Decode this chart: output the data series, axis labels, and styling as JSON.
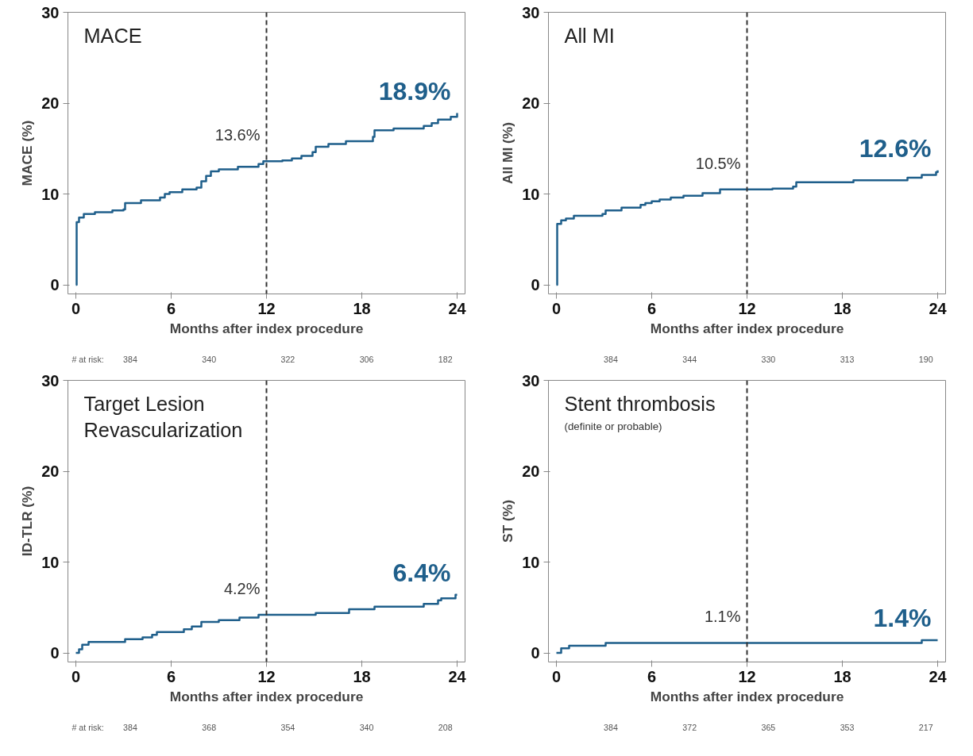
{
  "chart_data": [
    {
      "type": "step",
      "title": "MACE",
      "xlabel": "Months after index procedure",
      "ylabel": "MACE (%)",
      "xlim": [
        -0.5,
        24.5
      ],
      "ylim": [
        -1,
        30
      ],
      "xticks": [
        0,
        6,
        12,
        18,
        24
      ],
      "yticks": [
        0,
        10,
        20,
        30
      ],
      "grid": false,
      "line_style": "solid",
      "series": [
        {
          "color": "#1f5f8b",
          "x": [
            0,
            0.05,
            0.2,
            0.5,
            1.2,
            2.3,
            3.0,
            3.1,
            4.1,
            5.3,
            5.6,
            5.9,
            6.7,
            7.6,
            7.9,
            8.2,
            8.5,
            9.0,
            10.2,
            11.5,
            11.8,
            12,
            13.0,
            13.6,
            14.2,
            14.9,
            15.1,
            15.9,
            17.0,
            18.7,
            18.8,
            20.0,
            21.9,
            22.4,
            22.8,
            23.6,
            24.0
          ],
          "values": [
            0,
            6.9,
            7.4,
            7.8,
            8.0,
            8.2,
            8.3,
            9.0,
            9.3,
            9.6,
            10.0,
            10.2,
            10.5,
            10.7,
            11.4,
            12.0,
            12.5,
            12.7,
            13.0,
            13.3,
            13.6,
            13.6,
            13.7,
            13.9,
            14.2,
            14.6,
            15.2,
            15.5,
            15.8,
            16.3,
            17.0,
            17.2,
            17.5,
            17.8,
            18.2,
            18.5,
            18.9
          ],
          "value_labels": [
            null,
            null,
            null,
            null,
            null,
            null,
            null,
            null,
            null,
            null,
            null,
            null,
            null,
            null,
            null,
            null,
            null,
            null,
            null,
            null,
            null,
            "13.6%",
            null,
            null,
            null,
            null,
            null,
            null,
            null,
            null,
            null,
            null,
            null,
            null,
            null,
            null,
            "18.9%"
          ]
        }
      ],
      "ref_lines": [
        {
          "axis": "x",
          "value": 12,
          "color": "#333333",
          "line_style": "dashed"
        }
      ],
      "annotations": [
        "# at risk:",
        "384",
        "340",
        "322",
        "306",
        "182"
      ]
    },
    {
      "type": "step",
      "title": "All MI",
      "xlabel": "Months after index procedure",
      "ylabel": "All MI (%)",
      "xlim": [
        -0.5,
        24.5
      ],
      "ylim": [
        -1,
        30
      ],
      "xticks": [
        0,
        6,
        12,
        18,
        24
      ],
      "yticks": [
        0,
        10,
        20,
        30
      ],
      "grid": false,
      "line_style": "solid",
      "series": [
        {
          "color": "#1f5f8b",
          "x": [
            0,
            0.05,
            0.3,
            0.6,
            1.1,
            2.9,
            3.1,
            4.1,
            5.3,
            5.6,
            6.0,
            6.5,
            7.2,
            8.0,
            9.2,
            10.3,
            12,
            13.6,
            14.9,
            15.1,
            18.7,
            22.1,
            23.0,
            23.9,
            24.0
          ],
          "values": [
            0,
            6.7,
            7.1,
            7.3,
            7.6,
            7.8,
            8.2,
            8.5,
            8.8,
            9.0,
            9.2,
            9.4,
            9.6,
            9.8,
            10.1,
            10.5,
            10.5,
            10.6,
            10.8,
            11.3,
            11.5,
            11.8,
            12.1,
            12.4,
            12.6
          ],
          "value_labels": [
            null,
            null,
            null,
            null,
            null,
            null,
            null,
            null,
            null,
            null,
            null,
            null,
            null,
            null,
            null,
            null,
            "10.5%",
            null,
            null,
            null,
            null,
            null,
            null,
            null,
            "12.6%"
          ]
        }
      ],
      "ref_lines": [
        {
          "axis": "x",
          "value": 12,
          "color": "#333333",
          "line_style": "dashed"
        }
      ],
      "annotations": [
        "384",
        "344",
        "330",
        "313",
        "190"
      ]
    },
    {
      "type": "step",
      "title": "Target Lesion\nRevascularization",
      "xlabel": "Months after index procedure",
      "ylabel": "ID-TLR (%)",
      "xlim": [
        -0.5,
        24.5
      ],
      "ylim": [
        -1,
        30
      ],
      "xticks": [
        0,
        6,
        12,
        18,
        24
      ],
      "yticks": [
        0,
        10,
        20,
        30
      ],
      "grid": false,
      "line_style": "solid",
      "series": [
        {
          "color": "#1f5f8b",
          "x": [
            0,
            0.2,
            0.4,
            0.8,
            3.1,
            4.2,
            4.8,
            5.1,
            6.8,
            7.3,
            7.9,
            9.0,
            10.3,
            11.5,
            12,
            15.1,
            17.2,
            18.8,
            21.9,
            22.8,
            23.0,
            23.9,
            24.0
          ],
          "values": [
            0,
            0.4,
            0.9,
            1.2,
            1.5,
            1.7,
            2.0,
            2.3,
            2.6,
            2.9,
            3.4,
            3.6,
            3.9,
            4.2,
            4.2,
            4.4,
            4.8,
            5.1,
            5.4,
            5.8,
            6.0,
            6.4,
            6.4
          ],
          "value_labels": [
            null,
            null,
            null,
            null,
            null,
            null,
            null,
            null,
            null,
            null,
            null,
            null,
            null,
            null,
            "4.2%",
            null,
            null,
            null,
            null,
            null,
            null,
            null,
            "6.4%"
          ]
        }
      ],
      "ref_lines": [
        {
          "axis": "x",
          "value": 12,
          "color": "#333333",
          "line_style": "dashed"
        }
      ],
      "annotations": [
        "# at risk:",
        "384",
        "368",
        "354",
        "340",
        "208"
      ]
    },
    {
      "type": "step",
      "title": "Stent thrombosis",
      "subtitle": "(definite or probable)",
      "xlabel": "Months after index procedure",
      "ylabel": "ST (%)",
      "xlim": [
        -0.5,
        24.5
      ],
      "ylim": [
        -1,
        30
      ],
      "xticks": [
        0,
        6,
        12,
        18,
        24
      ],
      "yticks": [
        0,
        10,
        20,
        30
      ],
      "grid": false,
      "line_style": "solid",
      "series": [
        {
          "color": "#1f5f8b",
          "x": [
            0,
            0.3,
            0.8,
            3.1,
            12,
            23.0,
            24.0
          ],
          "values": [
            0,
            0.5,
            0.8,
            1.1,
            1.1,
            1.4,
            1.4
          ],
          "value_labels": [
            null,
            null,
            null,
            null,
            "1.1%",
            null,
            "1.4%"
          ]
        }
      ],
      "ref_lines": [
        {
          "axis": "x",
          "value": 12,
          "color": "#333333",
          "line_style": "dashed"
        }
      ],
      "annotations": [
        "384",
        "372",
        "365",
        "353",
        "217"
      ]
    }
  ]
}
